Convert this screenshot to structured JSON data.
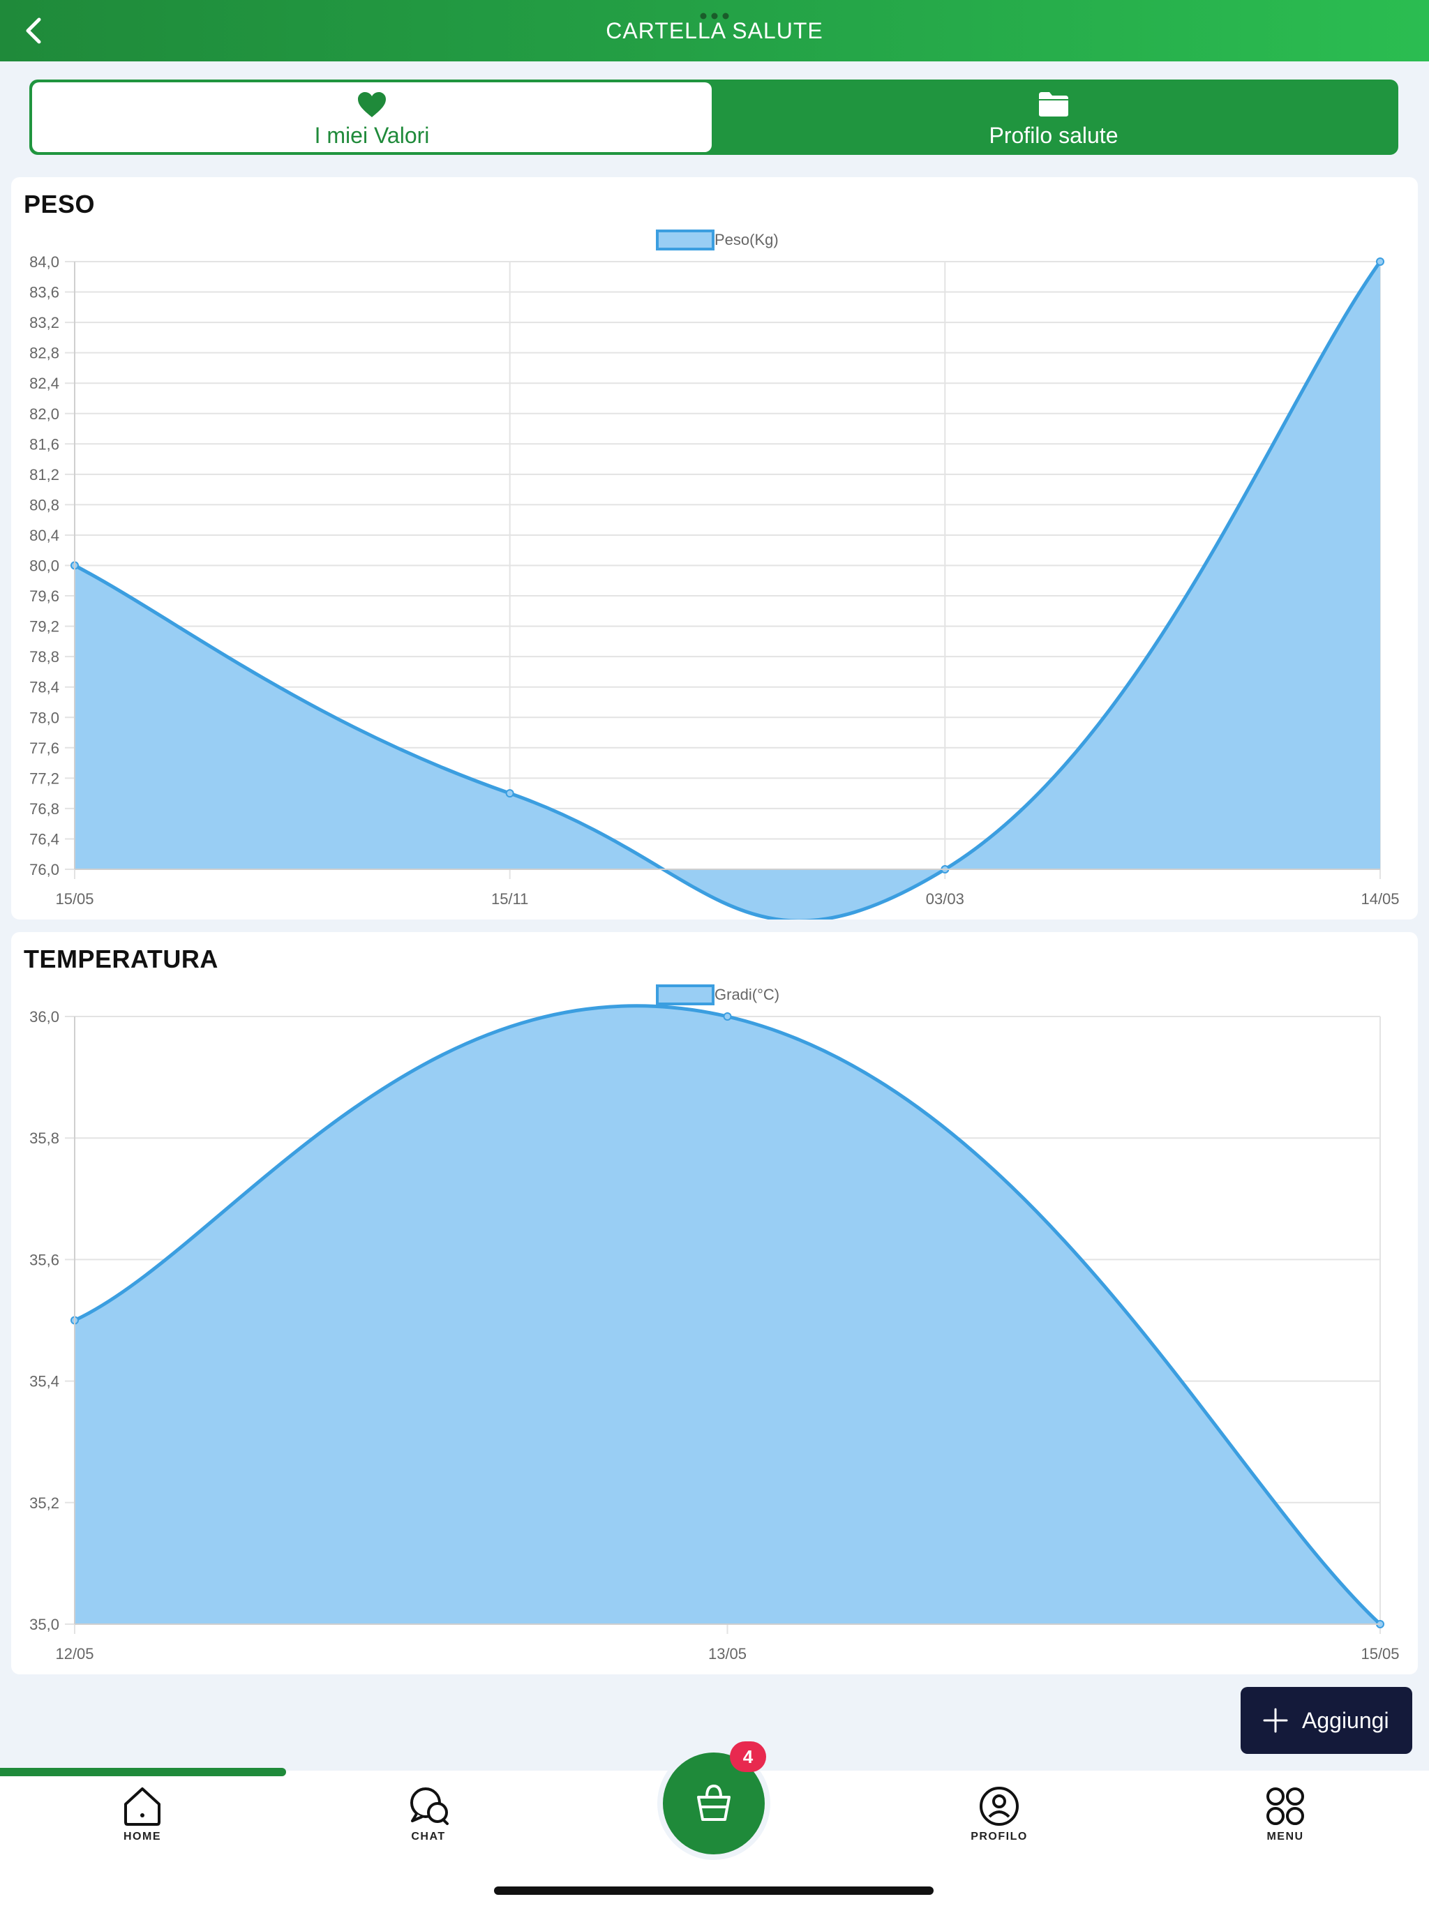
{
  "header": {
    "title": "CARTELLA SALUTE"
  },
  "tabs": [
    {
      "label": "I miei Valori",
      "icon": "heart-icon",
      "active": true
    },
    {
      "label": "Profilo salute",
      "icon": "folder-icon",
      "active": false
    }
  ],
  "colors": {
    "primary_green": "#1f8a3a",
    "chart_line": "#3b9ee0",
    "chart_fill": "#99cef4",
    "dark_button": "#141a3a",
    "badge": "#e8294f"
  },
  "cards": {
    "peso": {
      "title": "PESO"
    },
    "temperatura": {
      "title": "TEMPERATURA"
    }
  },
  "chart_data": [
    {
      "type": "area",
      "title": "PESO",
      "legend": [
        "Peso(Kg)"
      ],
      "legend_position": "top-center",
      "categories": [
        "15/05",
        "15/11",
        "03/03",
        "14/05"
      ],
      "series": [
        {
          "name": "Peso(Kg)",
          "values": [
            80.0,
            77.0,
            76.0,
            84.0
          ]
        }
      ],
      "ylim": [
        76.0,
        84.0
      ],
      "yticks": [
        "84,0",
        "83,6",
        "83,2",
        "82,8",
        "82,4",
        "82,0",
        "81,6",
        "81,2",
        "80,8",
        "80,4",
        "80,0",
        "79,6",
        "79,2",
        "78,8",
        "78,4",
        "78,0",
        "77,6",
        "77,2",
        "76,8",
        "76,4",
        "76,0"
      ],
      "grid": true
    },
    {
      "type": "area",
      "title": "TEMPERATURA",
      "legend": [
        "Gradi(°C)"
      ],
      "legend_position": "top-center",
      "categories": [
        "12/05",
        "13/05",
        "15/05"
      ],
      "series": [
        {
          "name": "Gradi(°C)",
          "values": [
            35.5,
            36.0,
            35.0
          ]
        }
      ],
      "ylim": [
        35.0,
        36.0
      ],
      "yticks": [
        "36,0",
        "35,8",
        "35,6",
        "35,4",
        "35,2",
        "35,0"
      ],
      "grid": true
    }
  ],
  "add_button": {
    "label": "Aggiungi",
    "icon": "plus-icon"
  },
  "cart": {
    "badge_count": "4",
    "icon": "shopping-bag-icon"
  },
  "bottom_nav": [
    {
      "label": "HOME",
      "icon": "home-icon",
      "active": true
    },
    {
      "label": "CHAT",
      "icon": "chat-icon",
      "active": false
    },
    {
      "label": "PROFILO",
      "icon": "profile-icon",
      "active": false
    },
    {
      "label": "MENU",
      "icon": "menu-grid-icon",
      "active": false
    }
  ]
}
